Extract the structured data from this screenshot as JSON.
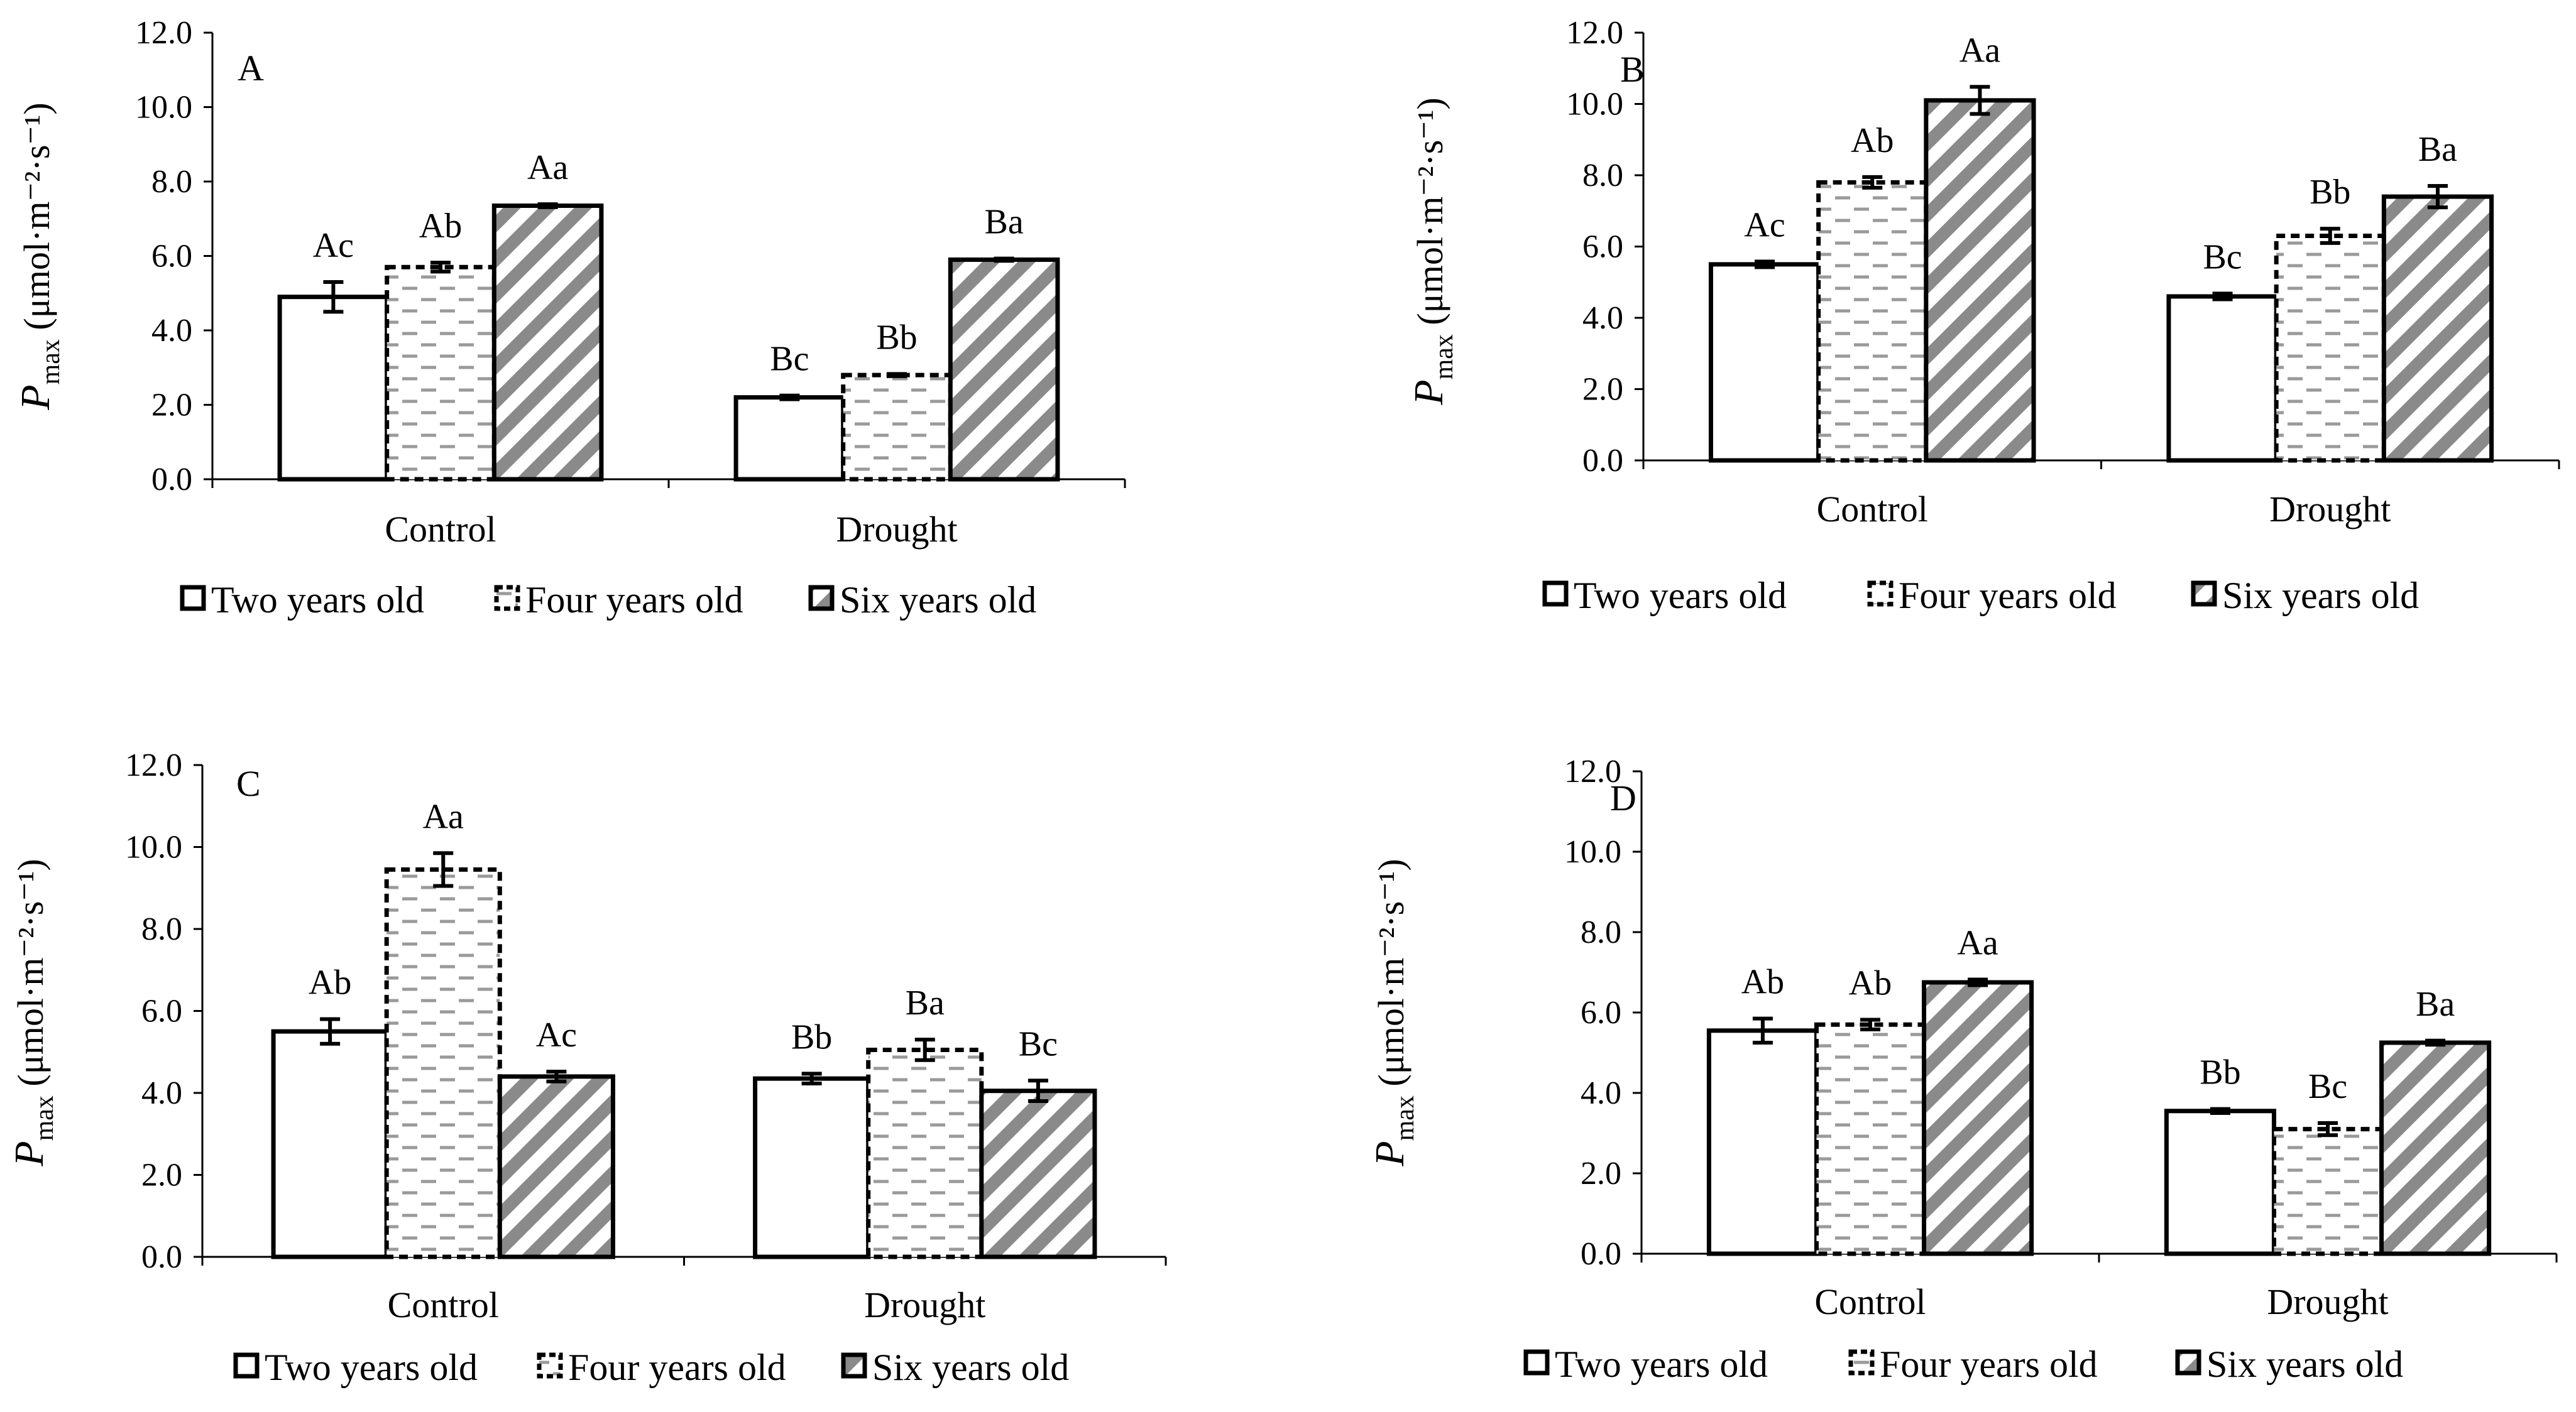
{
  "legend": {
    "items": [
      {
        "key": "two",
        "label": "Two years old"
      },
      {
        "key": "four",
        "label": "Four years old"
      },
      {
        "key": "six",
        "label": "Six years old"
      }
    ]
  },
  "chart_data": [
    {
      "type": "bar",
      "panel": "A",
      "categories": [
        "Control",
        "Drought"
      ],
      "ylabel_main": "P",
      "ylabel_sub": "max",
      "ylabel_unit": " (μmol·m⁻²·s⁻¹)",
      "ylim": [
        0,
        12
      ],
      "yticks": [
        "0.0",
        "2.0",
        "4.0",
        "6.0",
        "8.0",
        "10.0",
        "12.0"
      ],
      "series": [
        {
          "name": "Two years old",
          "values": [
            4.9,
            2.2
          ],
          "errors": [
            0.4,
            0.05
          ],
          "labels": [
            "Ac",
            "Bc"
          ]
        },
        {
          "name": "Four years old",
          "values": [
            5.7,
            2.8
          ],
          "errors": [
            0.12,
            0.03
          ],
          "labels": [
            "Ab",
            "Bb"
          ]
        },
        {
          "name": "Six years old",
          "values": [
            7.35,
            5.9
          ],
          "errors": [
            0.04,
            0.03
          ],
          "labels": [
            "Aa",
            "Ba"
          ]
        }
      ]
    },
    {
      "type": "bar",
      "panel": "B",
      "categories": [
        "Control",
        "Drought"
      ],
      "ylabel_main": "P",
      "ylabel_sub": "max",
      "ylabel_unit": " (μmol·m⁻²·s⁻¹)",
      "ylim": [
        0,
        12
      ],
      "yticks": [
        "0.0",
        "2.0",
        "4.0",
        "6.0",
        "8.0",
        "10.0",
        "12.0"
      ],
      "series": [
        {
          "name": "Two years old",
          "values": [
            5.5,
            4.6
          ],
          "errors": [
            0.08,
            0.08
          ],
          "labels": [
            "Ac",
            "Bc"
          ]
        },
        {
          "name": "Four years old",
          "values": [
            7.8,
            6.3
          ],
          "errors": [
            0.15,
            0.2
          ],
          "labels": [
            "Ab",
            "Bb"
          ]
        },
        {
          "name": "Six years old",
          "values": [
            10.1,
            7.4
          ],
          "errors": [
            0.38,
            0.3
          ],
          "labels": [
            "Aa",
            "Ba"
          ]
        }
      ]
    },
    {
      "type": "bar",
      "panel": "C",
      "categories": [
        "Control",
        "Drought"
      ],
      "ylabel_main": "P",
      "ylabel_sub": "max",
      "ylabel_unit": " (μmol·m⁻²·s⁻¹)",
      "ylim": [
        0,
        12
      ],
      "yticks": [
        "0.0",
        "2.0",
        "4.0",
        "6.0",
        "8.0",
        "10.0",
        "12.0"
      ],
      "series": [
        {
          "name": "Two years old",
          "values": [
            5.5,
            4.35
          ],
          "errors": [
            0.3,
            0.12
          ],
          "labels": [
            "Ab",
            "Bb"
          ]
        },
        {
          "name": "Four years old",
          "values": [
            9.45,
            5.05
          ],
          "errors": [
            0.4,
            0.25
          ],
          "labels": [
            "Aa",
            "Ba"
          ]
        },
        {
          "name": "Six years old",
          "values": [
            4.4,
            4.05
          ],
          "errors": [
            0.12,
            0.25
          ],
          "labels": [
            "Ac",
            "Bc"
          ]
        }
      ]
    },
    {
      "type": "bar",
      "panel": "D",
      "categories": [
        "Control",
        "Drought"
      ],
      "ylabel_main": "P",
      "ylabel_sub": "max",
      "ylabel_unit": " (μmol·m⁻²·s⁻¹)",
      "ylim": [
        0,
        12
      ],
      "yticks": [
        "0.0",
        "2.0",
        "4.0",
        "6.0",
        "8.0",
        "10.0",
        "12.0"
      ],
      "series": [
        {
          "name": "Two years old",
          "values": [
            5.55,
            3.55
          ],
          "errors": [
            0.3,
            0.05
          ],
          "labels": [
            "Ab",
            "Bb"
          ]
        },
        {
          "name": "Four years old",
          "values": [
            5.7,
            3.1
          ],
          "errors": [
            0.12,
            0.15
          ],
          "labels": [
            "Ab",
            "Bc"
          ]
        },
        {
          "name": "Six years old",
          "values": [
            6.75,
            5.25
          ],
          "errors": [
            0.07,
            0.05
          ],
          "labels": [
            "Aa",
            "Ba"
          ]
        }
      ]
    }
  ]
}
